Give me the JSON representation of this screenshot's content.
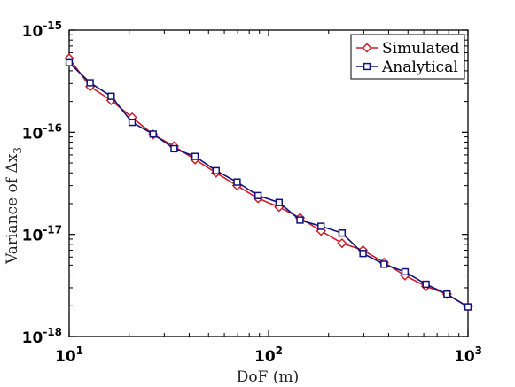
{
  "chart_data": {
    "type": "line",
    "xlabel": "DoF (m)",
    "ylabel": "Variance of Δx",
    "ylabel_subscript": "3",
    "xscale": "log",
    "yscale": "log",
    "xlim": [
      10,
      1000
    ],
    "ylim": [
      1e-18,
      1e-15
    ],
    "x_ticks": [
      {
        "base": "10",
        "exp": "1"
      },
      {
        "base": "10",
        "exp": "2"
      },
      {
        "base": "10",
        "exp": "3"
      }
    ],
    "y_ticks": [
      {
        "base": "10",
        "exp": "-18"
      },
      {
        "base": "10",
        "exp": "-17"
      },
      {
        "base": "10",
        "exp": "-16"
      },
      {
        "base": "10",
        "exp": "-15"
      }
    ],
    "grid": false,
    "legend_position": "top-right",
    "x": [
      10,
      12.74,
      16.24,
      20.69,
      26.37,
      33.6,
      42.81,
      54.56,
      69.52,
      88.59,
      112.9,
      143.8,
      183.3,
      233.6,
      297.6,
      379.3,
      483.3,
      615.8,
      784.8,
      1000
    ],
    "series": [
      {
        "name": "Simulated",
        "color": "#c8202a",
        "marker": "diamond",
        "values": [
          5.3e-16,
          2.8e-16,
          2.05e-16,
          1.4e-16,
          9.5e-17,
          7.3e-17,
          5.4e-17,
          4e-17,
          3e-17,
          2.25e-17,
          1.85e-17,
          1.45e-17,
          1.08e-17,
          8.2e-18,
          7e-18,
          5.3e-18,
          3.95e-18,
          3.1e-18,
          2.6e-18,
          1.95e-18
        ]
      },
      {
        "name": "Analytical",
        "color": "#11117a",
        "marker": "square",
        "values": [
          4.8e-16,
          3.05e-16,
          2.25e-16,
          1.25e-16,
          9.6e-17,
          6.9e-17,
          5.8e-17,
          4.2e-17,
          3.25e-17,
          2.4e-17,
          2.05e-17,
          1.38e-17,
          1.2e-17,
          1.03e-17,
          6.5e-18,
          5.1e-18,
          4.3e-18,
          3.25e-18,
          2.6e-18,
          1.95e-18
        ]
      }
    ]
  }
}
